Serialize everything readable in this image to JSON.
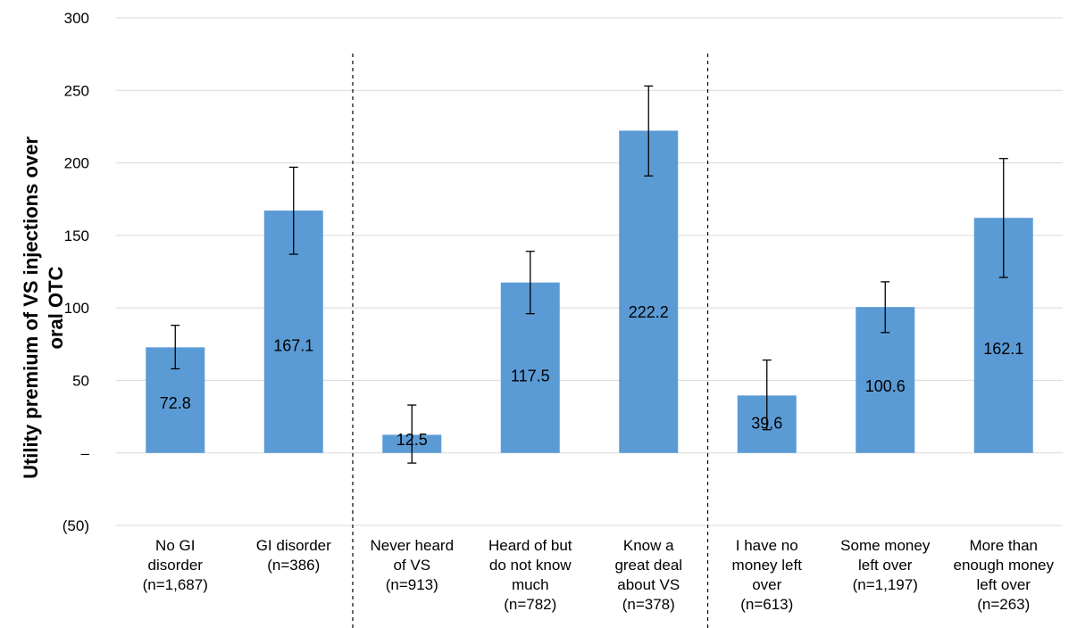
{
  "chart_data": {
    "type": "bar",
    "ylabel": "Utility premium of VS injections over oral OTC",
    "ylabel_lines": [
      "Utility premium of VS injections over",
      "oral OTC"
    ],
    "ylim": [
      -50,
      300
    ],
    "yticks": [
      -50,
      0,
      50,
      100,
      150,
      200,
      250,
      300
    ],
    "ytick_labels": [
      "(50)",
      "–",
      "50",
      "100",
      "150",
      "200",
      "250",
      "300"
    ],
    "grid": true,
    "bar_color": "#5b9bd5",
    "groups": [
      [
        0,
        1
      ],
      [
        2,
        3,
        4
      ],
      [
        5,
        6,
        7
      ]
    ],
    "categories": [
      {
        "lines": [
          "No GI",
          "disorder",
          "(n=1,687)"
        ],
        "value": 72.8,
        "label": "72.8",
        "err_low": 58,
        "err_high": 88
      },
      {
        "lines": [
          "GI disorder",
          "(n=386)"
        ],
        "value": 167.1,
        "label": "167.1",
        "err_low": 137,
        "err_high": 197
      },
      {
        "lines": [
          "Never heard",
          "of VS",
          "(n=913)"
        ],
        "value": 12.5,
        "label": "12.5",
        "err_low": -7,
        "err_high": 33
      },
      {
        "lines": [
          "Heard of but",
          "do not know",
          "much",
          "(n=782)"
        ],
        "value": 117.5,
        "label": "117.5",
        "err_low": 96,
        "err_high": 139
      },
      {
        "lines": [
          "Know a",
          "great deal",
          "about VS",
          "(n=378)"
        ],
        "value": 222.2,
        "label": "222.2",
        "err_low": 191,
        "err_high": 253
      },
      {
        "lines": [
          "I have no",
          "money left",
          "over",
          "(n=613)"
        ],
        "value": 39.6,
        "label": "39.6",
        "err_low": 16,
        "err_high": 64
      },
      {
        "lines": [
          "Some money",
          "left over",
          "(n=1,197)"
        ],
        "value": 100.6,
        "label": "100.6",
        "err_low": 83,
        "err_high": 118
      },
      {
        "lines": [
          "More than",
          "enough money",
          "left over",
          "(n=263)"
        ],
        "value": 162.1,
        "label": "162.1",
        "err_low": 121,
        "err_high": 203
      }
    ]
  }
}
